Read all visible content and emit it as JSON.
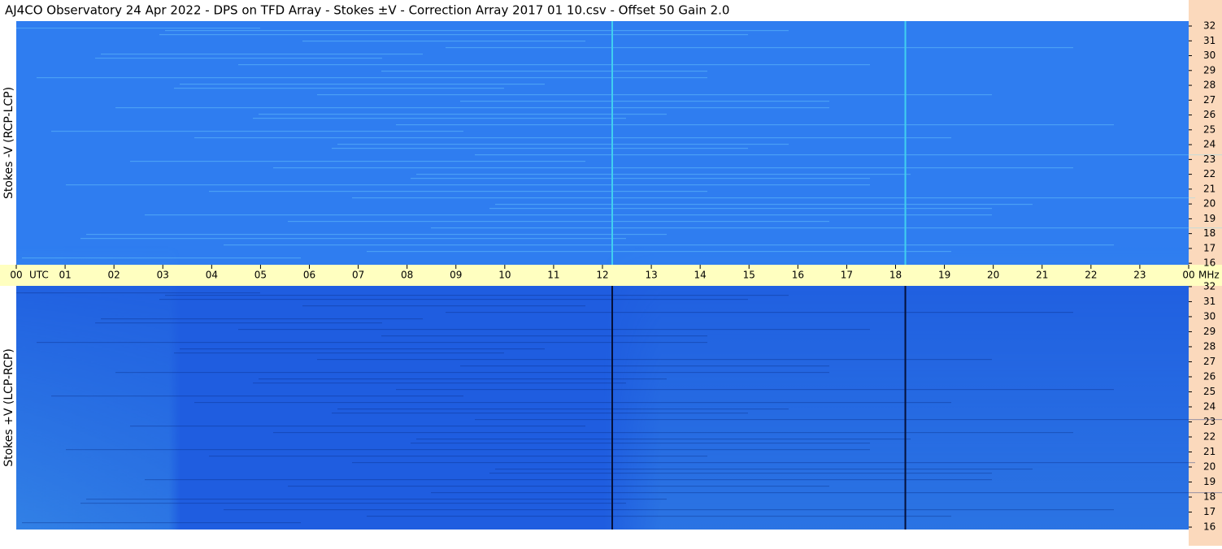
{
  "title": "AJ4CO Observatory  24 Apr 2022  -  DPS on TFD Array  -  Stokes ±V  -  Correction Array 2017 01 10.csv  -  Offset 50  Gain 2.0",
  "time_axis": {
    "xlim": [
      0,
      24
    ],
    "time_unit": "UTC",
    "freq_unit": "MHz",
    "xticks": [
      {
        "value": 0,
        "label": "00"
      },
      {
        "value": 1,
        "label": "01"
      },
      {
        "value": 2,
        "label": "02"
      },
      {
        "value": 3,
        "label": "03"
      },
      {
        "value": 4,
        "label": "04"
      },
      {
        "value": 5,
        "label": "05"
      },
      {
        "value": 6,
        "label": "06"
      },
      {
        "value": 7,
        "label": "07"
      },
      {
        "value": 8,
        "label": "08"
      },
      {
        "value": 9,
        "label": "09"
      },
      10,
      11,
      12,
      13,
      14,
      15,
      16,
      17,
      18,
      19,
      20,
      21,
      22,
      23,
      {
        "value": 24,
        "label": "00"
      }
    ]
  },
  "chart_data": [
    {
      "type": "spectrogram",
      "ylabel": "Stokes -V (RCP-LCP)",
      "ylim": [
        15.9,
        32.33
      ],
      "yticks": [
        16,
        17,
        18,
        19,
        20,
        21,
        22,
        23,
        24,
        25,
        26,
        27,
        28,
        29,
        30,
        31,
        32
      ],
      "color": "#2f7df0",
      "line_color": "#40d0f0"
    },
    {
      "type": "spectrogram",
      "ylabel": "Stokes +V (LCP-RCP)",
      "ylim": [
        15.84,
        32.05
      ],
      "yticks": [
        16,
        17,
        18,
        19,
        20,
        21,
        22,
        23,
        24,
        25,
        26,
        27,
        28,
        29,
        30,
        31,
        32
      ],
      "color": "#1f5de0",
      "line_color": "#04103a"
    }
  ]
}
